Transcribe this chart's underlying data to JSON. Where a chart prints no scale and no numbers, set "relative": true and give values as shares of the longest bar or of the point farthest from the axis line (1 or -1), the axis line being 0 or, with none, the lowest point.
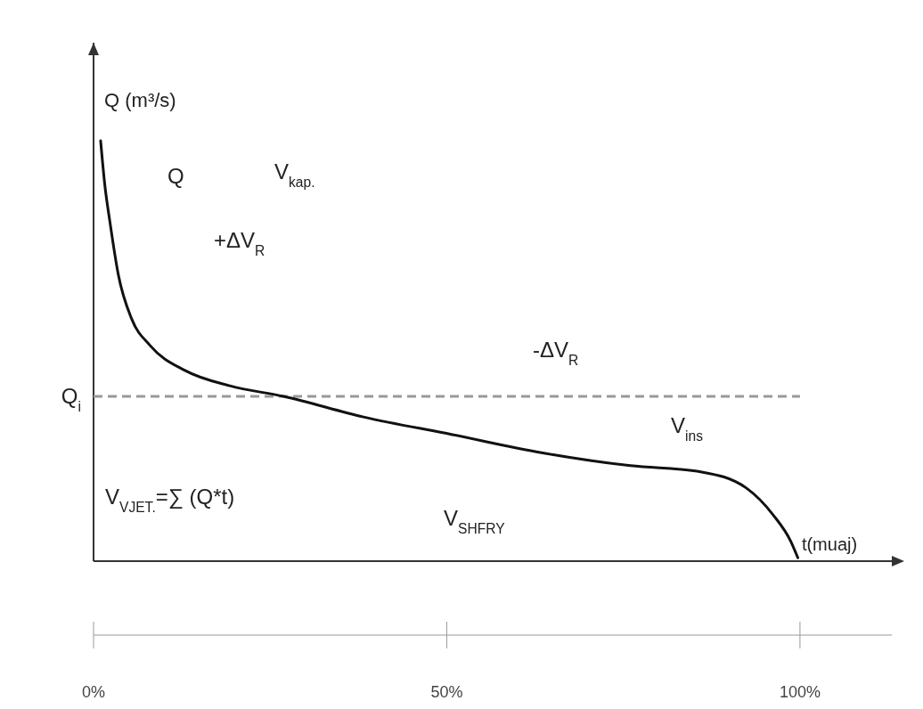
{
  "chart_data": {
    "type": "line",
    "relative": true,
    "xlabel": "t(muaj)",
    "ylabel": "Q (m³/s)",
    "xlim": [
      0,
      113
    ],
    "xticks": [
      {
        "value": 0,
        "label": "0%"
      },
      {
        "value": 50,
        "label": "50%"
      },
      {
        "value": 100,
        "label": "100%"
      }
    ],
    "series": [
      {
        "color": "#111111",
        "x": [
          1.0,
          1.6,
          2.3,
          3.5,
          5.4,
          8.0,
          13.0,
          19.3,
          26.9,
          38.2,
          50.8,
          63.4,
          76.0,
          86.1,
          92.4,
          96.2,
          98.7,
          99.7
        ],
        "values": [
          1.0,
          0.894,
          0.809,
          0.682,
          0.576,
          0.513,
          0.453,
          0.417,
          0.392,
          0.343,
          0.301,
          0.258,
          0.227,
          0.212,
          0.174,
          0.11,
          0.047,
          0.008
        ]
      }
    ],
    "ref_lines": [
      {
        "axis": "y",
        "value": 0.392,
        "label": "Q$_{i}$",
        "color": "#999999",
        "line_style": "dashed"
      }
    ],
    "annotations": [
      "Q",
      "V$_{kap.}$",
      "+ΔV$_{R}$",
      "-ΔV$_{R}$",
      "V$_{ins}$",
      "V$_{VJET.}$=∑ (Q*t)",
      "V$_{SHFRY}$"
    ],
    "grid": false,
    "marker": "none",
    "line_style": "solid"
  }
}
